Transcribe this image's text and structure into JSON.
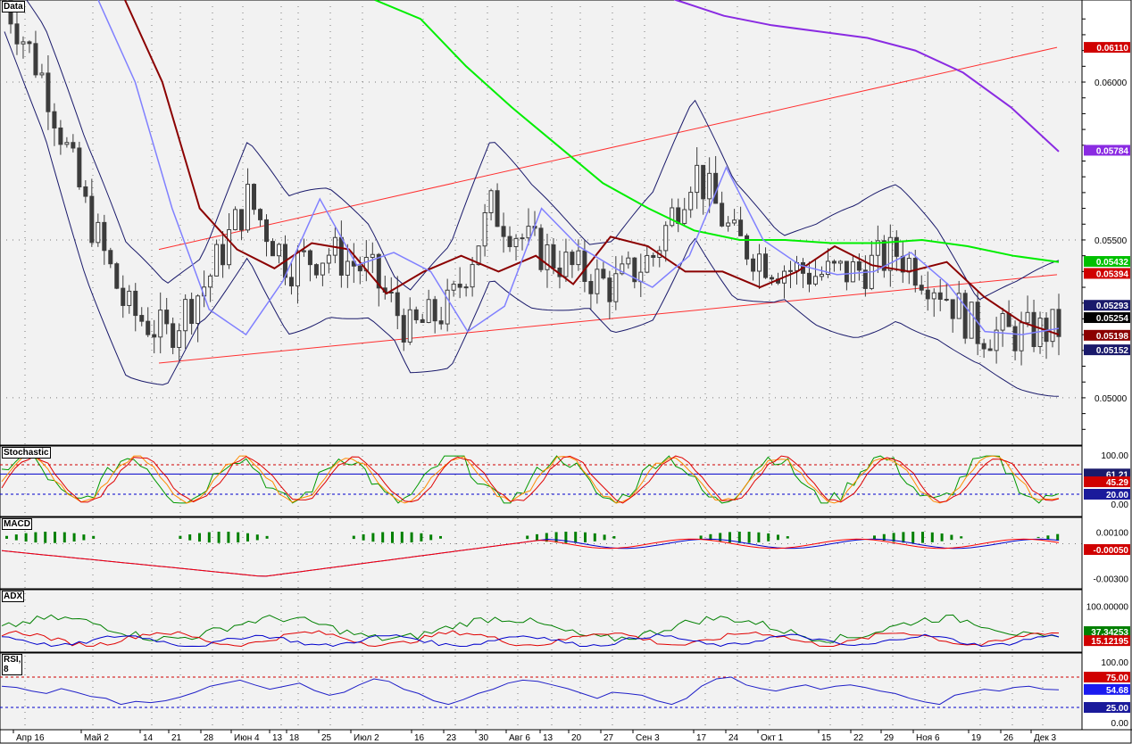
{
  "colors": {
    "panel_bg": "#f2f2f2",
    "candle": "#3c3c3c",
    "bollinger": "#1a1a6b",
    "ma_fast": "#8080ff",
    "ma_mid": "#8b0000",
    "ma_slow": "#00ee00",
    "ma_200": "#8a2be2",
    "channel": "#ff3030",
    "macd_hist": "#008000",
    "macd_line": "#0000cc",
    "signal_line": "#ff0000",
    "rsi_line": "#2020c8"
  },
  "panels": {
    "data": {
      "title": "Data"
    },
    "stoch": {
      "title": "Stochastic"
    },
    "macd": {
      "title": "MACD"
    },
    "adx": {
      "title": "ADX"
    },
    "rsi": {
      "title": "RSI, 8"
    }
  },
  "x_axis_labels": [
    "Апр 16",
    "Май 2",
    "14",
    "21",
    "28",
    "Июн 4",
    "13",
    "18",
    "25",
    "Июл 2",
    "16",
    "23",
    "30",
    "Авг 6",
    "13",
    "20",
    "27",
    "Сен 3",
    "17",
    "24",
    "Окт 1",
    "15",
    "22",
    "29",
    "Ноя 6",
    "19",
    "26",
    "Дек 3"
  ],
  "chart_data": [
    {
      "type": "line",
      "subtype": "candlestick",
      "panel": "Data",
      "x_axis": "time",
      "yticks": [
        "0.05000",
        "0.05500",
        "0.06000"
      ],
      "ylim": [
        0.0485,
        0.0626
      ],
      "price_labels": [
        {
          "value": "0.06110",
          "y": 0.0611,
          "color": "#d00000"
        },
        {
          "value": "0.05784",
          "y": 0.05784,
          "color": "#8a2be2"
        },
        {
          "value": "0.05432",
          "y": 0.05432,
          "color": "#00c000"
        },
        {
          "value": "0.05394",
          "y": 0.05394,
          "color": "#d00000"
        },
        {
          "value": "0.05293",
          "y": 0.05293,
          "color": "#1a1a6b"
        },
        {
          "value": "0.05254",
          "y": 0.05254,
          "color": "#000000"
        },
        {
          "value": "0.05198",
          "y": 0.05198,
          "color": "#8b0000"
        },
        {
          "value": "0.05152",
          "y": 0.05152,
          "color": "#1a1a6b"
        }
      ],
      "channel_upper": [
        [
          0.0547,
          0.0611
        ]
      ],
      "channel_lower": [
        [
          0.0511,
          0.0539
        ]
      ],
      "series": [
        {
          "key": "ma_200",
          "values": [
            0.0635,
            0.0632,
            0.0626,
            0.0621,
            0.0618,
            0.0616,
            0.0614,
            0.061,
            0.0603,
            0.0592,
            0.0578
          ]
        },
        {
          "key": "ma_slow",
          "values": [
            0.0626,
            0.062,
            0.0605,
            0.0592,
            0.058,
            0.0568,
            0.056,
            0.0553,
            0.055,
            0.055,
            0.0549,
            0.0549,
            0.055,
            0.0548,
            0.0545,
            0.0543
          ]
        },
        {
          "key": "ma_mid",
          "values": [
            0.0626,
            0.06,
            0.056,
            0.0547,
            0.0541,
            0.0549,
            0.0547,
            0.0533,
            0.054,
            0.0545,
            0.054,
            0.0545,
            0.0536,
            0.0551,
            0.0548,
            0.054,
            0.054,
            0.0535,
            0.054,
            0.0548,
            0.0542,
            0.054,
            0.0543,
            0.0532,
            0.0524,
            0.052
          ]
        },
        {
          "key": "ma_fast",
          "values": [
            0.0626,
            0.06,
            0.056,
            0.0528,
            0.052,
            0.0537,
            0.0563,
            0.0542,
            0.0546,
            0.054,
            0.0521,
            0.0529,
            0.056,
            0.0548,
            0.0541,
            0.0535,
            0.0545,
            0.0573,
            0.055,
            0.0542,
            0.0539,
            0.054,
            0.0546,
            0.0536,
            0.0521,
            0.052,
            0.0522
          ]
        }
      ]
    },
    {
      "type": "line",
      "panel": "Stochastic",
      "ylim": [
        0,
        100
      ],
      "yticks": [
        "100.00",
        "0.00"
      ],
      "levels": [
        {
          "value": 80,
          "color": "#d00000"
        },
        {
          "value": 20,
          "color": "#0000cc"
        }
      ],
      "price_labels": [
        {
          "value": "61.21",
          "y": 61.21,
          "color": "#1a1a6b"
        },
        {
          "value": "45.29",
          "y": 45.29,
          "color": "#d00000"
        },
        {
          "value": "20.00",
          "y": 20.0,
          "color": "#1a1a9b"
        }
      ]
    },
    {
      "type": "bar",
      "panel": "MACD",
      "ylim": [
        -0.0035,
        0.0015
      ],
      "yticks": [
        "0.00100",
        "-0.00300"
      ],
      "price_labels": [
        {
          "value": "-0.00050",
          "y": -0.0005,
          "color": "#d00000"
        }
      ]
    },
    {
      "type": "line",
      "panel": "ADX",
      "ylim": [
        0,
        110
      ],
      "yticks": [
        "100.00000"
      ],
      "price_labels": [
        {
          "value": "37.34253",
          "y": 37.34,
          "color": "#008000"
        },
        {
          "value": "15.12195",
          "y": 15.12,
          "color": "#d00000"
        }
      ]
    },
    {
      "type": "line",
      "panel": "RSI, 8",
      "ylim": [
        0,
        100
      ],
      "yticks": [
        "100.00",
        "0.00"
      ],
      "levels": [
        {
          "value": 75,
          "color": "#d00000"
        },
        {
          "value": 25,
          "color": "#0000cc"
        }
      ],
      "price_labels": [
        {
          "value": "75.00",
          "y": 75.0,
          "color": "#d00000"
        },
        {
          "value": "54.68",
          "y": 54.68,
          "color": "#1a1af0"
        },
        {
          "value": "25.00",
          "y": 25.0,
          "color": "#1a1a9b"
        }
      ],
      "values": [
        60,
        58,
        52,
        48,
        56,
        50,
        43,
        40,
        30,
        35,
        33,
        36,
        42,
        50,
        60,
        65,
        70,
        62,
        55,
        60,
        65,
        53,
        45,
        50,
        62,
        72,
        68,
        55,
        48,
        36,
        30,
        38,
        48,
        55,
        65,
        70,
        68,
        62,
        56,
        48,
        40,
        50,
        48,
        45,
        36,
        30,
        40,
        60,
        72,
        75,
        62,
        56,
        52,
        58,
        62,
        55,
        60,
        62,
        58,
        52,
        48,
        40,
        34,
        30,
        45,
        50,
        55,
        52,
        58,
        60,
        55,
        54
      ]
    }
  ]
}
